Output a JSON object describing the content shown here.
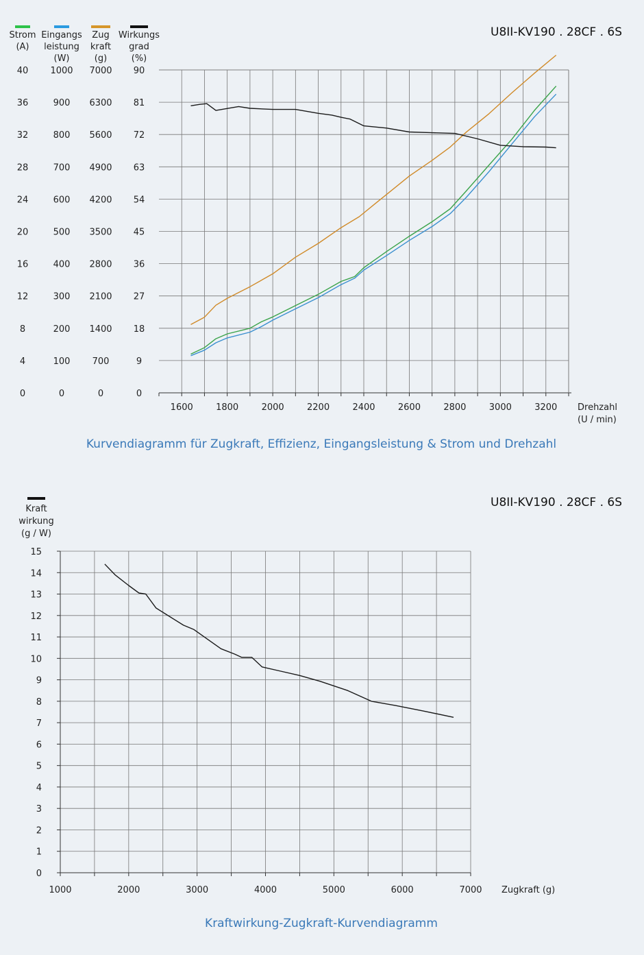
{
  "chart_data": [
    {
      "type": "line",
      "model": "U8II-KV190 . 28CF . 6S",
      "title": "Kurvendiagramm für Zugkraft, Effizienz, Eingangsleistung &  Strom und Drehzahl",
      "xlabel": [
        "Drehzahl",
        "(U / min)"
      ],
      "xlim": [
        1500,
        3300
      ],
      "x_ticks": [
        1600,
        1800,
        2000,
        2200,
        2400,
        2600,
        2800,
        3000,
        3200
      ],
      "grid": true,
      "axes": [
        {
          "key": "strom",
          "label": [
            "Strom",
            "(A)"
          ],
          "color": "#2ec24a",
          "ylim": [
            0,
            40
          ],
          "ticks": [
            0,
            4,
            8,
            12,
            16,
            20,
            24,
            28,
            32,
            36,
            40
          ]
        },
        {
          "key": "leistung",
          "label": [
            "Eingangs",
            "leistung",
            "(W)"
          ],
          "color": "#2b9be0",
          "ylim": [
            0,
            1000
          ],
          "ticks": [
            0,
            100,
            200,
            300,
            400,
            500,
            600,
            700,
            800,
            900,
            1000
          ]
        },
        {
          "key": "zugkraft",
          "label": [
            "Zug",
            "kraft",
            "(g)"
          ],
          "color": "#d6962a",
          "ylim": [
            0,
            7000
          ],
          "ticks": [
            0,
            700,
            1400,
            2100,
            2800,
            3500,
            4200,
            4900,
            5600,
            6300,
            7000
          ]
        },
        {
          "key": "wirkungsgrad",
          "label": [
            "Wirkungs",
            "grad",
            "(%)"
          ],
          "color": "#111111",
          "ylim": [
            0,
            90
          ],
          "ticks": [
            0,
            9,
            18,
            27,
            36,
            45,
            54,
            63,
            72,
            81,
            90
          ]
        }
      ],
      "series": [
        {
          "name": "Strom",
          "axis": "strom",
          "color": "#3aa34a",
          "x": [
            1640,
            1700,
            1750,
            1800,
            1900,
            1950,
            2000,
            2100,
            2200,
            2300,
            2360,
            2400,
            2500,
            2600,
            2700,
            2780,
            2850,
            2950,
            3050,
            3150,
            3245
          ],
          "y": [
            4.8,
            5.6,
            6.7,
            7.3,
            8.0,
            8.8,
            9.4,
            10.8,
            12.2,
            13.8,
            14.4,
            15.5,
            17.5,
            19.4,
            21.2,
            22.8,
            25.0,
            28.2,
            31.4,
            35.0,
            38.0
          ]
        },
        {
          "name": "Eingangsleistung",
          "axis": "leistung",
          "color": "#3a8fcf",
          "x": [
            1640,
            1700,
            1750,
            1800,
            1900,
            1950,
            2000,
            2100,
            2200,
            2300,
            2360,
            2400,
            2500,
            2600,
            2700,
            2780,
            2850,
            2950,
            3050,
            3150,
            3245
          ],
          "y": [
            115,
            132,
            155,
            170,
            188,
            205,
            225,
            260,
            295,
            335,
            355,
            380,
            425,
            472,
            515,
            555,
            605,
            685,
            770,
            855,
            925
          ]
        },
        {
          "name": "Zugkraft",
          "axis": "zugkraft",
          "color": "#d08a28",
          "x": [
            1640,
            1700,
            1750,
            1800,
            1900,
            2000,
            2100,
            2200,
            2300,
            2380,
            2450,
            2500,
            2600,
            2700,
            2780,
            2850,
            2950,
            3050,
            3150,
            3245
          ],
          "y": [
            1480,
            1640,
            1900,
            2050,
            2300,
            2580,
            2940,
            3240,
            3580,
            3820,
            4100,
            4300,
            4700,
            5040,
            5330,
            5650,
            6050,
            6500,
            6930,
            7320
          ]
        },
        {
          "name": "Wirkungsgrad",
          "axis": "wirkungsgrad",
          "color": "#1a1a1a",
          "x": [
            1640,
            1680,
            1710,
            1750,
            1850,
            1900,
            2000,
            2100,
            2200,
            2260,
            2300,
            2340,
            2400,
            2500,
            2600,
            2700,
            2800,
            2900,
            3000,
            3100,
            3200,
            3245
          ],
          "y": [
            80.0,
            80.4,
            80.6,
            78.7,
            79.8,
            79.3,
            79.0,
            79.0,
            77.9,
            77.4,
            76.8,
            76.3,
            74.4,
            73.8,
            72.7,
            72.5,
            72.3,
            70.8,
            69.0,
            68.6,
            68.5,
            68.3
          ]
        }
      ]
    },
    {
      "type": "line",
      "model": "U8II-KV190 . 28CF . 6S",
      "title": "Kraftwirkung-Zugkraft-Kurvendiagramm",
      "xlabel": "Zugkraft (g)",
      "ylabel": [
        "Kraft",
        "wirkung",
        "(g / W)"
      ],
      "xlim": [
        1000,
        7000
      ],
      "ylim": [
        0,
        15
      ],
      "x_ticks": [
        1000,
        2000,
        3000,
        4000,
        5000,
        6000,
        7000
      ],
      "y_ticks": [
        0,
        1,
        2,
        3,
        4,
        5,
        6,
        7,
        8,
        9,
        10,
        11,
        12,
        13,
        14,
        15
      ],
      "grid": true,
      "legend_color": "#111111",
      "series": [
        {
          "name": "Kraftwirkung",
          "color": "#1a1a1a",
          "x": [
            1650,
            1800,
            2000,
            2150,
            2250,
            2400,
            2600,
            2800,
            2950,
            3150,
            3350,
            3550,
            3650,
            3800,
            3950,
            4200,
            4500,
            4800,
            5200,
            5550,
            5900,
            6300,
            6750
          ],
          "y": [
            14.4,
            13.9,
            13.4,
            13.05,
            13.0,
            12.35,
            11.95,
            11.55,
            11.35,
            10.9,
            10.45,
            10.2,
            10.05,
            10.05,
            9.6,
            9.42,
            9.2,
            8.93,
            8.5,
            8.0,
            7.8,
            7.55,
            7.25
          ]
        }
      ]
    }
  ]
}
